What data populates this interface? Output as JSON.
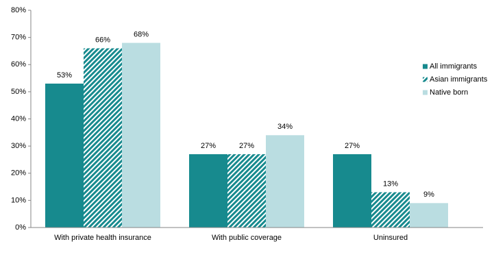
{
  "chart_data": {
    "type": "bar",
    "categories": [
      "With private health insurance",
      "With public coverage",
      "Uninsured"
    ],
    "series": [
      {
        "name": "All immigrants",
        "color": "#178a8e",
        "values": [
          53,
          27,
          27
        ],
        "value_labels": [
          "53%",
          "27%",
          "27%"
        ]
      },
      {
        "name": "Asian immigrants",
        "color": "#178a8e",
        "pattern": "diagonal-hatch",
        "values": [
          66,
          27,
          13
        ],
        "value_labels": [
          "66%",
          "27%",
          "13%"
        ]
      },
      {
        "name": "Native born",
        "color": "#badde1",
        "values": [
          68,
          34,
          9
        ],
        "value_labels": [
          "68%",
          "34%",
          "9%"
        ]
      }
    ],
    "ylim": [
      0,
      80
    ],
    "yticks": [
      {
        "value": 0,
        "label": "0%"
      },
      {
        "value": 10,
        "label": "10%"
      },
      {
        "value": 20,
        "label": "20%"
      },
      {
        "value": 30,
        "label": "30%"
      },
      {
        "value": 40,
        "label": "40%"
      },
      {
        "value": 50,
        "label": "50%"
      },
      {
        "value": 60,
        "label": "60%"
      },
      {
        "value": 70,
        "label": "70%"
      },
      {
        "value": 80,
        "label": "80%"
      }
    ],
    "grid": false,
    "legend": "right"
  }
}
